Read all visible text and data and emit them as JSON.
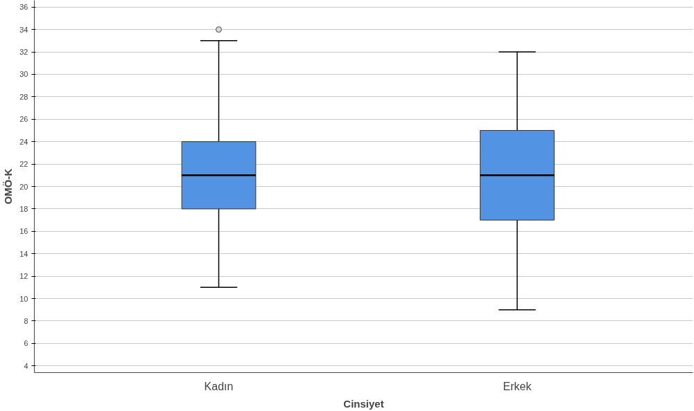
{
  "chart_data": {
    "type": "box",
    "xlabel": "Cinsiyet",
    "ylabel": "OMÖ-K",
    "categories": [
      "Kadın",
      "Erkek"
    ],
    "boxes": [
      {
        "low": 11,
        "q1": 18,
        "median": 21,
        "q3": 24,
        "high": 33,
        "outliers": [
          34
        ]
      },
      {
        "low": 9,
        "q1": 17,
        "median": 21,
        "q3": 25,
        "high": 32
      }
    ],
    "colors": [
      "#5393e3",
      "#5393e3"
    ],
    "ylim": [
      3.4,
      36.6
    ],
    "yticks": [
      4,
      6,
      8,
      10,
      12,
      14,
      16,
      18,
      20,
      22,
      24,
      26,
      28,
      30,
      32,
      34,
      36
    ],
    "grid": "y"
  }
}
